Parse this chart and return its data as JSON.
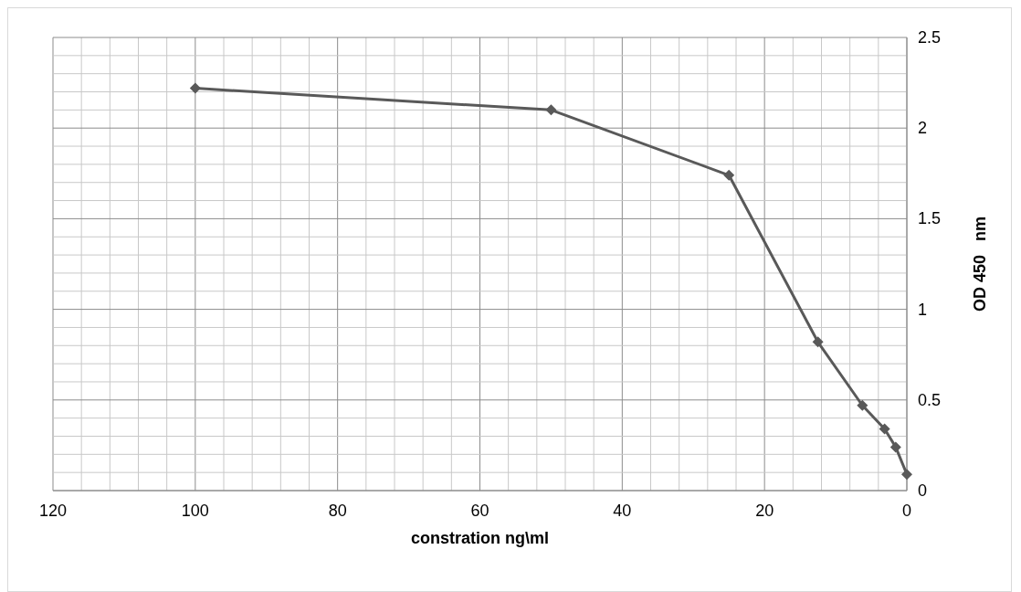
{
  "chart_data": {
    "type": "line",
    "xlabel": "constration ng\\ml",
    "ylabel": "OD 450   nm",
    "xlim": [
      120,
      0
    ],
    "ylim": [
      0,
      2.5
    ],
    "xticks": [
      120,
      {
        "value": 116,
        "label": null
      },
      {
        "value": 112,
        "label": null
      },
      {
        "value": 108,
        "label": null
      },
      {
        "value": 104,
        "label": null
      },
      100,
      {
        "value": 96,
        "label": null
      },
      {
        "value": 92,
        "label": null
      },
      {
        "value": 88,
        "label": null
      },
      {
        "value": 84,
        "label": null
      },
      80,
      {
        "value": 76,
        "label": null
      },
      {
        "value": 72,
        "label": null
      },
      {
        "value": 68,
        "label": null
      },
      {
        "value": 64,
        "label": null
      },
      60,
      {
        "value": 56,
        "label": null
      },
      {
        "value": 52,
        "label": null
      },
      {
        "value": 48,
        "label": null
      },
      {
        "value": 44,
        "label": null
      },
      40,
      {
        "value": 36,
        "label": null
      },
      {
        "value": 32,
        "label": null
      },
      {
        "value": 28,
        "label": null
      },
      {
        "value": 24,
        "label": null
      },
      20,
      {
        "value": 16,
        "label": null
      },
      {
        "value": 12,
        "label": null
      },
      {
        "value": 8,
        "label": null
      },
      {
        "value": 4,
        "label": null
      },
      0
    ],
    "yticks": [
      0,
      {
        "value": 0.1,
        "label": null
      },
      {
        "value": 0.2,
        "label": null
      },
      {
        "value": 0.3,
        "label": null
      },
      {
        "value": 0.4,
        "label": null
      },
      0.5,
      {
        "value": 0.6,
        "label": null
      },
      {
        "value": 0.7,
        "label": null
      },
      {
        "value": 0.8,
        "label": null
      },
      {
        "value": 0.9,
        "label": null
      },
      1,
      {
        "value": 1.1,
        "label": null
      },
      {
        "value": 1.2,
        "label": null
      },
      {
        "value": 1.3,
        "label": null
      },
      {
        "value": 1.4,
        "label": null
      },
      1.5,
      {
        "value": 1.6,
        "label": null
      },
      {
        "value": 1.7,
        "label": null
      },
      {
        "value": 1.8,
        "label": null
      },
      {
        "value": 1.9,
        "label": null
      },
      2,
      {
        "value": 2.1,
        "label": null
      },
      {
        "value": 2.2,
        "label": null
      },
      {
        "value": 2.3,
        "label": null
      },
      {
        "value": 2.4,
        "label": null
      },
      2.5
    ],
    "x": [
      100,
      50,
      25,
      12.5,
      6.25,
      3.125,
      1.5625,
      0
    ],
    "series": [
      {
        "color": "#595959",
        "values": [
          2.22,
          2.1,
          1.74,
          0.82,
          0.47,
          0.34,
          0.24,
          0.09
        ]
      }
    ],
    "grid": true,
    "marker": "diamond",
    "line_style": "solid"
  }
}
